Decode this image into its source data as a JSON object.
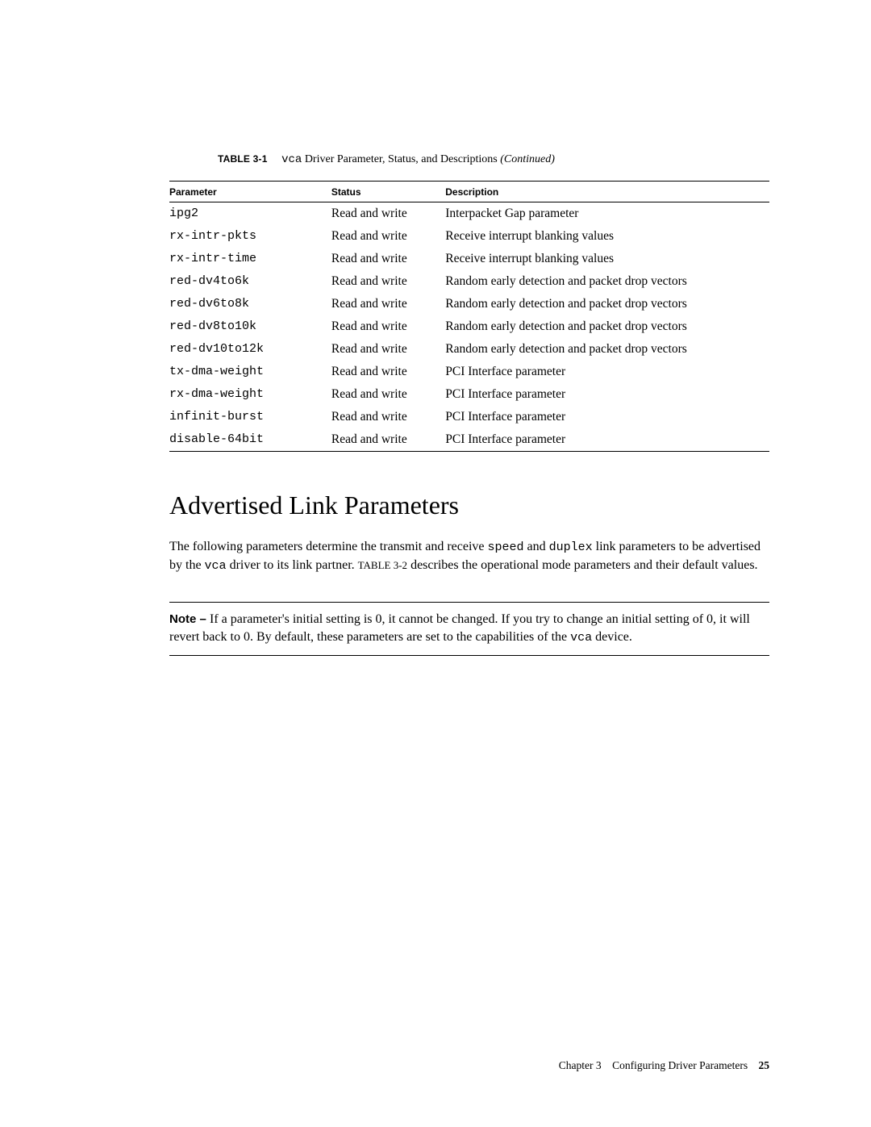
{
  "caption": {
    "label": "TABLE 3-1",
    "code_prefix": "vca",
    "text": " Driver Parameter, Status, and Descriptions  ",
    "suffix_italic": "(Continued)"
  },
  "table": {
    "columns": [
      "Parameter",
      "Status",
      "Description"
    ],
    "col_widths_pct": [
      27,
      19,
      54
    ],
    "rows": [
      {
        "param": "ipg2",
        "status": "Read and write",
        "desc": "Interpacket Gap parameter"
      },
      {
        "param": "rx-intr-pkts",
        "status": "Read and write",
        "desc": "Receive interrupt blanking values"
      },
      {
        "param": "rx-intr-time",
        "status": "Read and write",
        "desc": "Receive interrupt blanking values"
      },
      {
        "param": "red-dv4to6k",
        "status": "Read and write",
        "desc": "Random early detection and packet drop vectors"
      },
      {
        "param": "red-dv6to8k",
        "status": "Read and write",
        "desc": "Random early detection and packet drop vectors"
      },
      {
        "param": "red-dv8to10k",
        "status": "Read and write",
        "desc": "Random early detection and packet drop vectors"
      },
      {
        "param": "red-dv10to12k",
        "status": "Read and write",
        "desc": "Random early detection and packet drop vectors"
      },
      {
        "param": "tx-dma-weight",
        "status": "Read and write",
        "desc": "PCI Interface parameter"
      },
      {
        "param": "rx-dma-weight",
        "status": "Read and write",
        "desc": "PCI Interface parameter"
      },
      {
        "param": "infinit-burst",
        "status": "Read and write",
        "desc": "PCI Interface parameter"
      },
      {
        "param": "disable-64bit",
        "status": "Read and write",
        "desc": "PCI Interface parameter"
      }
    ]
  },
  "section": {
    "heading": "Advertised Link Parameters",
    "para": {
      "pre1": "The following parameters determine the transmit and receive ",
      "code1": "speed",
      "mid1": " and ",
      "code2": "duplex",
      "post1": " link parameters to be advertised by the ",
      "code3": "vca",
      "post2": " driver to its link partner. ",
      "ref": "TABLE 3-2",
      "post3": " describes the operational mode parameters and their default values."
    }
  },
  "note": {
    "lead": "Note – ",
    "text1": "If a parameter's initial setting is 0, it cannot be changed. If you try to change an initial setting of 0, it will revert back to 0. By default, these parameters are set to the capabilities of the ",
    "code": "vca",
    "text2": " device."
  },
  "footer": {
    "chapter": "Chapter 3",
    "title": "Configuring Driver Parameters",
    "page": "25"
  }
}
